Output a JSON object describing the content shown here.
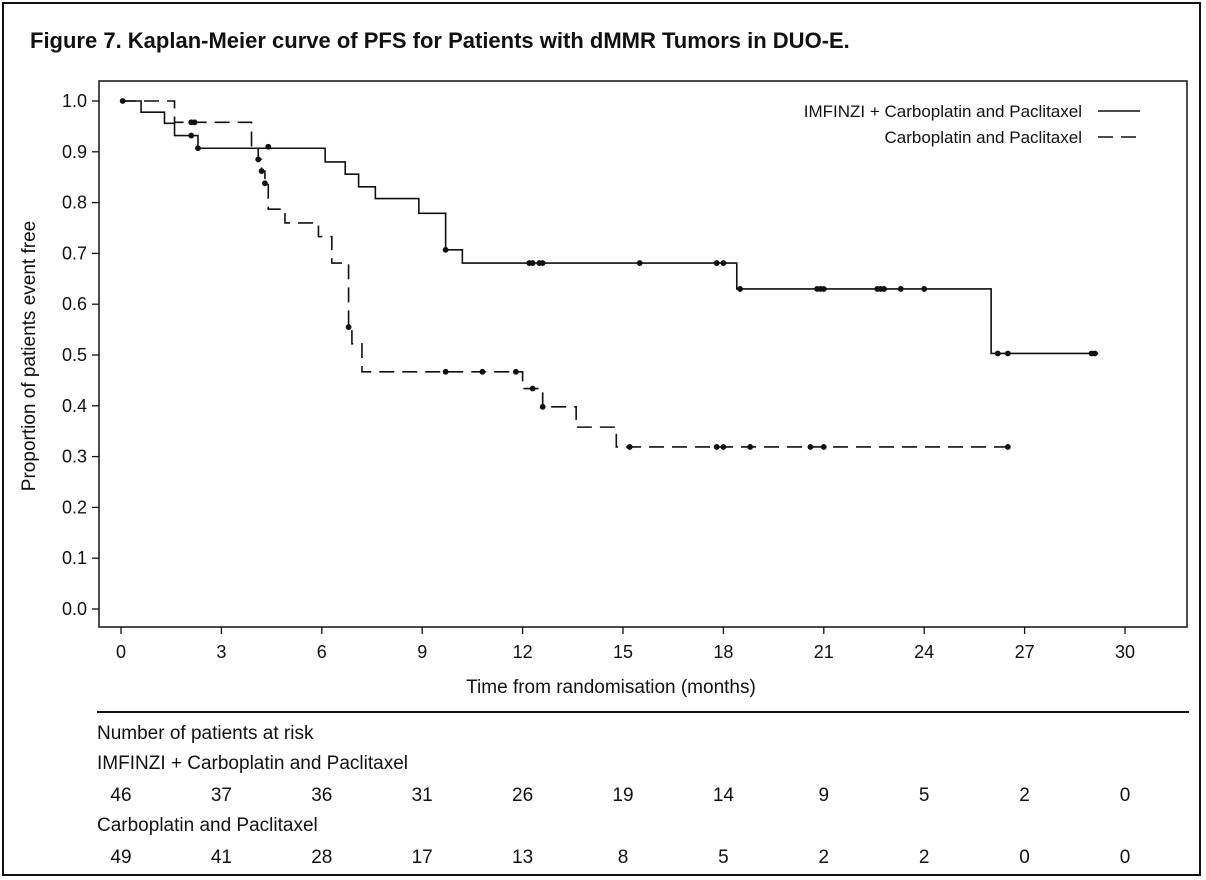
{
  "figure_title": "Figure 7. Kaplan-Meier curve of PFS for Patients with dMMR Tumors in DUO-E.",
  "chart_data": {
    "type": "line",
    "subtype": "kaplan-meier",
    "xlabel": "Time from randomisation (months)",
    "ylabel": "Proportion of patients event free",
    "xlim": [
      0,
      30
    ],
    "ylim": [
      0.0,
      1.0
    ],
    "xticks": [
      "0",
      "3",
      "6",
      "9",
      "12",
      "15",
      "18",
      "21",
      "24",
      "27",
      "30"
    ],
    "yticks": [
      "0.0",
      "0.1",
      "0.2",
      "0.3",
      "0.4",
      "0.5",
      "0.6",
      "0.7",
      "0.8",
      "0.9",
      "1.0"
    ],
    "grid": false,
    "legend_position": "top-right",
    "series": [
      {
        "name": "IMFINZI + Carboplatin and Paclitaxel",
        "line_style": "solid",
        "color": "#111111",
        "steps": [
          [
            0,
            1.0
          ],
          [
            0.6,
            0.978
          ],
          [
            1.3,
            0.956
          ],
          [
            1.6,
            0.932
          ],
          [
            2.3,
            0.907
          ],
          [
            6.1,
            0.88
          ],
          [
            6.7,
            0.856
          ],
          [
            7.1,
            0.831
          ],
          [
            7.6,
            0.808
          ],
          [
            8.9,
            0.779
          ],
          [
            9.7,
            0.707
          ],
          [
            10.2,
            0.681
          ],
          [
            18.4,
            0.63
          ],
          [
            26.0,
            0.503
          ],
          [
            29.2,
            0.503
          ]
        ],
        "censored": [
          [
            0.05,
            1.0
          ],
          [
            2.1,
            0.932
          ],
          [
            2.3,
            0.907
          ],
          [
            9.7,
            0.707
          ],
          [
            12.2,
            0.681
          ],
          [
            12.3,
            0.681
          ],
          [
            12.5,
            0.681
          ],
          [
            12.6,
            0.681
          ],
          [
            15.5,
            0.681
          ],
          [
            17.8,
            0.681
          ],
          [
            18.0,
            0.681
          ],
          [
            18.5,
            0.63
          ],
          [
            20.8,
            0.63
          ],
          [
            20.9,
            0.63
          ],
          [
            21.0,
            0.63
          ],
          [
            22.6,
            0.63
          ],
          [
            22.7,
            0.63
          ],
          [
            22.8,
            0.63
          ],
          [
            23.3,
            0.63
          ],
          [
            24.0,
            0.63
          ],
          [
            26.2,
            0.503
          ],
          [
            26.5,
            0.503
          ],
          [
            29.0,
            0.503
          ],
          [
            29.1,
            0.503
          ]
        ]
      },
      {
        "name": "Carboplatin and Paclitaxel",
        "line_style": "dashed",
        "color": "#111111",
        "steps": [
          [
            0,
            1.0
          ],
          [
            1.6,
            0.958
          ],
          [
            3.9,
            0.91
          ],
          [
            4.1,
            0.885
          ],
          [
            4.2,
            0.862
          ],
          [
            4.3,
            0.838
          ],
          [
            4.4,
            0.787
          ],
          [
            4.9,
            0.76
          ],
          [
            5.9,
            0.733
          ],
          [
            6.3,
            0.681
          ],
          [
            6.8,
            0.555
          ],
          [
            6.9,
            0.522
          ],
          [
            7.2,
            0.467
          ],
          [
            12.0,
            0.434
          ],
          [
            12.6,
            0.398
          ],
          [
            13.6,
            0.358
          ],
          [
            14.8,
            0.319
          ],
          [
            26.5,
            0.319
          ]
        ],
        "censored": [
          [
            2.1,
            0.958
          ],
          [
            2.2,
            0.958
          ],
          [
            4.1,
            0.885
          ],
          [
            4.2,
            0.862
          ],
          [
            4.3,
            0.838
          ],
          [
            4.4,
            0.91
          ],
          [
            6.8,
            0.555
          ],
          [
            9.7,
            0.467
          ],
          [
            10.8,
            0.467
          ],
          [
            11.8,
            0.467
          ],
          [
            12.3,
            0.434
          ],
          [
            12.6,
            0.398
          ],
          [
            15.2,
            0.319
          ],
          [
            17.8,
            0.319
          ],
          [
            18.0,
            0.319
          ],
          [
            18.8,
            0.319
          ],
          [
            20.6,
            0.319
          ],
          [
            21.0,
            0.319
          ],
          [
            26.5,
            0.319
          ]
        ]
      }
    ]
  },
  "risk_table": {
    "title": "Number of patients at risk",
    "rows": [
      {
        "label": "IMFINZI + Carboplatin and Paclitaxel",
        "values": [
          "46",
          "37",
          "36",
          "31",
          "26",
          "19",
          "14",
          "9",
          "5",
          "2",
          "0"
        ]
      },
      {
        "label": "Carboplatin and Paclitaxel",
        "values": [
          "49",
          "41",
          "28",
          "17",
          "13",
          "8",
          "5",
          "2",
          "2",
          "0",
          "0"
        ]
      }
    ]
  }
}
